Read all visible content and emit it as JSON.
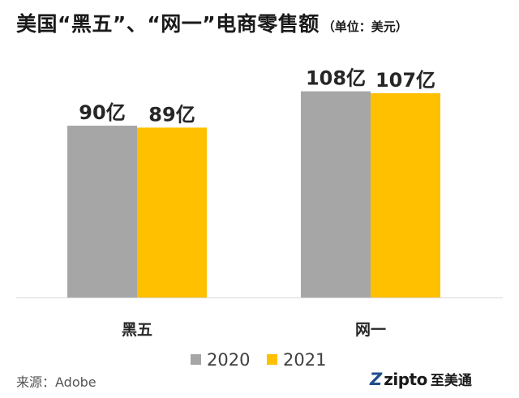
{
  "title": "美国“黑五”、“网一”电商零售额",
  "unit_note": "（单位：美元）",
  "source": "来源：Adobe",
  "logo": {
    "word": "zipto",
    "cn": "至美通"
  },
  "colors": {
    "s2020": "#a6a6a6",
    "s2021": "#ffc000",
    "axis": "#d9d9d9",
    "text": "#404040",
    "label": "#262626"
  },
  "chart_data": {
    "type": "bar",
    "categories": [
      "黑五",
      "网一"
    ],
    "ylim": [
      0,
      120
    ],
    "series": [
      {
        "name": "2020",
        "values": [
          90,
          108
        ],
        "labels": [
          "90亿",
          "108亿"
        ]
      },
      {
        "name": "2021",
        "values": [
          89,
          107
        ],
        "labels": [
          "89亿",
          "107亿"
        ]
      }
    ]
  }
}
